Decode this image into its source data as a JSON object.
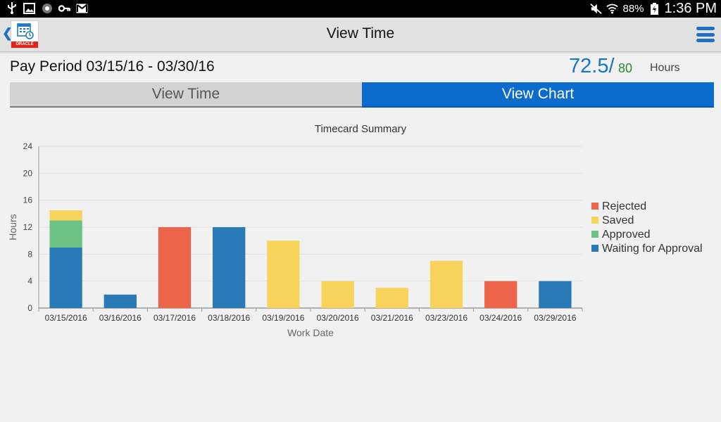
{
  "status_bar": {
    "battery": "88%",
    "time": "1:36 PM",
    "icons": [
      "usb-icon",
      "image-icon",
      "settings-app-icon",
      "vpn-key-icon",
      "gmail-icon",
      "mute-icon",
      "wifi-icon",
      "battery-charging-icon"
    ]
  },
  "app_bar": {
    "title": "View Time",
    "logo_text": "ORACLE"
  },
  "header": {
    "pay_period": "Pay Period 03/15/16 - 03/30/16",
    "hours_value": "72.5/",
    "hours_max": "80",
    "hours_label": "Hours"
  },
  "tabs": [
    {
      "label": "View Time",
      "selected": false
    },
    {
      "label": "View Chart",
      "selected": true
    }
  ],
  "colors": {
    "accent": "#0c6ccd",
    "rejected": "#ec654a",
    "saved": "#f8d45c",
    "approved": "#6bc283",
    "waiting": "#2a7ab7"
  },
  "chart_data": {
    "type": "bar",
    "stacked": true,
    "title": "Timecard Summary",
    "xlabel": "Work Date",
    "ylabel": "Hours",
    "ylim": [
      0,
      24
    ],
    "yticks": [
      0,
      4,
      8,
      12,
      16,
      20,
      24
    ],
    "grid": true,
    "legend_position": "right",
    "categories": [
      "03/15/2016",
      "03/16/2016",
      "03/17/2016",
      "03/18/2016",
      "03/19/2016",
      "03/20/2016",
      "03/21/2016",
      "03/23/2016",
      "03/24/2016",
      "03/29/2016"
    ],
    "series": [
      {
        "name": "Waiting for Approval",
        "color": "#2a7ab7",
        "values": [
          9,
          2,
          0,
          12,
          0,
          0,
          0,
          0,
          0,
          4
        ]
      },
      {
        "name": "Approved",
        "color": "#6bc283",
        "values": [
          4,
          0,
          0,
          0,
          0,
          0,
          0,
          0,
          0,
          0
        ]
      },
      {
        "name": "Saved",
        "color": "#f8d45c",
        "values": [
          1.5,
          0,
          0,
          0,
          10,
          4,
          3,
          7,
          0,
          0
        ]
      },
      {
        "name": "Rejected",
        "color": "#ec654a",
        "values": [
          0,
          0,
          12,
          0,
          0,
          0,
          0,
          0,
          4,
          0
        ]
      }
    ],
    "legend_order": [
      "Rejected",
      "Saved",
      "Approved",
      "Waiting for Approval"
    ]
  }
}
